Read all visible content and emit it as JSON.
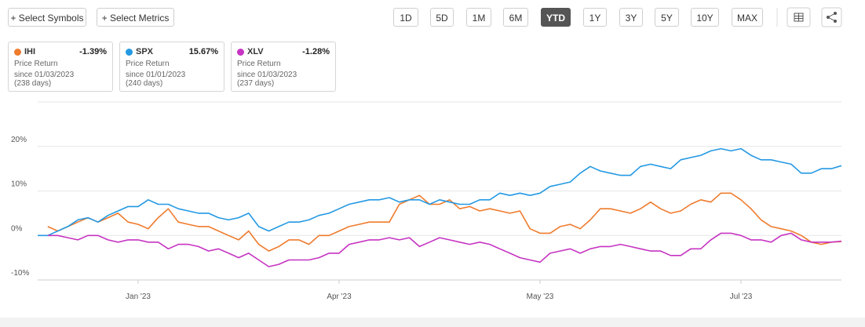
{
  "toolbar": {
    "left_buttons": [
      "+ Select Symbols",
      "+ Select Metrics"
    ],
    "periods": [
      "1D",
      "5D",
      "1M",
      "6M",
      "YTD",
      "1Y",
      "3Y",
      "5Y",
      "10Y",
      "MAX"
    ],
    "active_period_index": 4
  },
  "cards": [
    {
      "value": "-1.39%",
      "metric": "Price Return",
      "since": "since 01/03/2023",
      "days": "(238 days)"
    },
    {
      "value": "15.67%",
      "metric": "Price Return",
      "since": "since 01/01/2023",
      "days": "(240 days)"
    },
    {
      "value": "-1.28%",
      "metric": "Price Return",
      "since": "since 01/03/2023",
      "days": "(237 days)"
    }
  ],
  "chart_data": {
    "type": "line",
    "categories": [
      null,
      null,
      null,
      null,
      null,
      null,
      null,
      null,
      null,
      null,
      "Jan '23",
      null,
      null,
      null,
      null,
      null,
      null,
      null,
      null,
      null,
      null,
      null,
      null,
      null,
      null,
      null,
      null,
      null,
      null,
      null,
      "Apr '23",
      null,
      null,
      null,
      null,
      null,
      null,
      null,
      null,
      null,
      null,
      null,
      null,
      null,
      null,
      null,
      null,
      null,
      null,
      null,
      "May '23",
      null,
      null,
      null,
      null,
      null,
      null,
      null,
      null,
      null,
      null,
      null,
      null,
      null,
      null,
      null,
      null,
      null,
      null,
      null,
      "Jul '23",
      null,
      null,
      null,
      null,
      null,
      null,
      null,
      null,
      null,
      null
    ],
    "series": [
      {
        "name": "IHI",
        "color": "#ef7b2d",
        "values": [
          null,
          2,
          1,
          2,
          3,
          4,
          3,
          4,
          5,
          3,
          2.5,
          1.5,
          4,
          6,
          3,
          2.5,
          2,
          2,
          1,
          0,
          -1,
          1,
          -2,
          -3.5,
          -2.5,
          -1,
          -1,
          -2,
          0,
          0,
          1,
          2,
          2.5,
          3,
          3,
          3,
          7,
          8,
          9,
          7,
          7,
          8,
          6,
          6.5,
          5.5,
          6,
          5.5,
          5,
          5.5,
          1.5,
          0.5,
          0.5,
          2,
          2.5,
          1.5,
          3.5,
          6,
          6,
          5.5,
          5,
          6,
          7.5,
          6,
          5,
          5.5,
          7,
          8,
          7.5,
          9.5,
          9.5,
          8,
          6,
          3.5,
          2,
          1.5,
          1,
          0,
          -1.5,
          -2,
          -1.5,
          -1.39
        ]
      },
      {
        "name": "SPX",
        "color": "#2499e3",
        "values": [
          0,
          0,
          1,
          2,
          3.5,
          4,
          3,
          4.5,
          5.5,
          6.5,
          6.5,
          8,
          7,
          7,
          6,
          5.5,
          5,
          5,
          4,
          3.5,
          4,
          5,
          2,
          1,
          2,
          3,
          3,
          3.5,
          4.5,
          5,
          6,
          7,
          7.5,
          8,
          8,
          8.5,
          7.5,
          8,
          8,
          7,
          8,
          7.5,
          7,
          7,
          8,
          8,
          9.5,
          9,
          9.5,
          9,
          9.5,
          11,
          11.5,
          12,
          14,
          15.5,
          14.5,
          14,
          13.5,
          13.5,
          15.5,
          16,
          15.5,
          15,
          17,
          17.5,
          18,
          19,
          19.5,
          19,
          19.5,
          18,
          17,
          17,
          16.5,
          16,
          14,
          14,
          15,
          15,
          15.67
        ]
      },
      {
        "name": "XLV",
        "color": "#c634c2",
        "values": [
          null,
          0,
          0,
          -0.5,
          -1,
          0,
          0,
          -1,
          -1.5,
          -1,
          -1,
          -1.5,
          -1.5,
          -3,
          -2,
          -2,
          -2.5,
          -3.5,
          -3,
          -4,
          -5,
          -4,
          -5.5,
          -7,
          -6.5,
          -5.5,
          -5.5,
          -5.5,
          -5,
          -4,
          -4,
          -2,
          -1.5,
          -1,
          -1,
          -0.5,
          -1,
          -0.5,
          -2.5,
          -1.5,
          -0.5,
          -1,
          -1.5,
          -2,
          -1.5,
          -2,
          -3,
          -4,
          -5,
          -5.5,
          -6,
          -4,
          -3.5,
          -3,
          -4,
          -3,
          -2.5,
          -2.5,
          -2,
          -2.5,
          -3,
          -3.5,
          -3.5,
          -4.5,
          -4.5,
          -3,
          -3,
          -1,
          0.5,
          0.5,
          0,
          -1,
          -1,
          -1.5,
          0,
          0.5,
          -1,
          -1.5,
          -1.5,
          -1.5,
          -1.28
        ]
      }
    ],
    "ylim": [
      -10,
      30
    ],
    "yticks": [
      {
        "value": -10,
        "label": "-10%"
      },
      {
        "value": 0,
        "label": "0%"
      },
      {
        "value": 10,
        "label": "10%"
      },
      {
        "value": 20,
        "label": "20%"
      }
    ],
    "grid": true
  }
}
